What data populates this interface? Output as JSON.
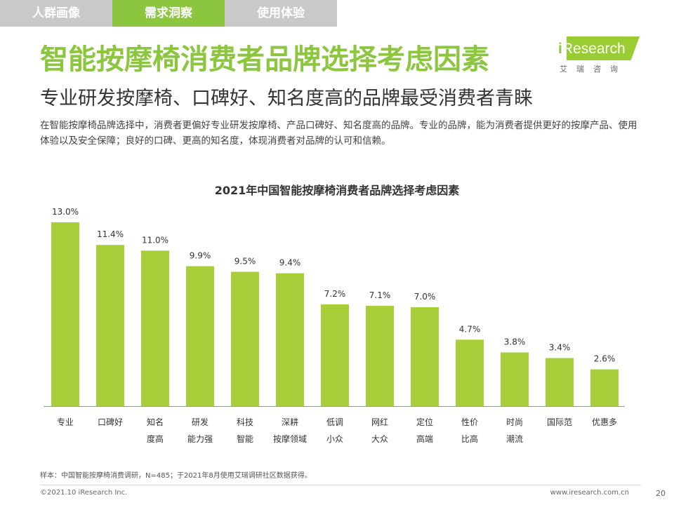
{
  "tabs": [
    {
      "label": "人群画像",
      "active": false
    },
    {
      "label": "需求洞察",
      "active": true
    },
    {
      "label": "使用体验",
      "active": false
    }
  ],
  "logo": {
    "main": "Research",
    "i_letter": "i",
    "sub": "艾瑞咨询"
  },
  "title": "智能按摩椅消费者品牌选择考虑因素",
  "subtitle": "专业研发按摩椅、口碑好、知名度高的品牌最受消费者青睐",
  "description": "在智能按摩椅品牌选择中，消费者更偏好专业研发按摩椅、产品口碑好、知名度高的品牌。专业的品牌，能为消费者提供更好的按摩产品、使用体验以及安全保障；良好的口碑、更高的知名度，体现消费者对品牌的认可和信赖。",
  "chart_data": {
    "type": "bar",
    "title": "2021年中国智能按摩椅消费者品牌选择考虑因素",
    "categories": [
      "专业",
      "口碑好",
      "知名度高",
      "研发能力强",
      "科技智能",
      "深耕按摩领域",
      "低调小众",
      "网红大众",
      "定位高端",
      "性价比高",
      "时尚潮流",
      "国际范",
      "优惠多"
    ],
    "category_lines": [
      [
        "专业"
      ],
      [
        "口碑好"
      ],
      [
        "知名",
        "度高"
      ],
      [
        "研发",
        "能力强"
      ],
      [
        "科技",
        "智能"
      ],
      [
        "深耕",
        "按摩领域"
      ],
      [
        "低调",
        "小众"
      ],
      [
        "网红",
        "大众"
      ],
      [
        "定位",
        "高端"
      ],
      [
        "性价",
        "比高"
      ],
      [
        "时尚",
        "潮流"
      ],
      [
        "国际范"
      ],
      [
        "优惠多"
      ]
    ],
    "values": [
      13.0,
      11.4,
      11.0,
      9.9,
      9.5,
      9.4,
      7.2,
      7.1,
      7.0,
      4.7,
      3.8,
      3.4,
      2.6
    ],
    "value_labels": [
      "13.0%",
      "11.4%",
      "11.0%",
      "9.9%",
      "9.5%",
      "9.4%",
      "7.2%",
      "7.1%",
      "7.0%",
      "4.7%",
      "3.8%",
      "3.4%",
      "2.6%"
    ],
    "ylim": [
      0,
      13.0
    ],
    "bar_color": "#a8cf3a",
    "grid": false
  },
  "footnote": "样本：中国智能按摩椅消费调研，N=485；于2021年8月使用艾瑞调研社区数据获得。",
  "copyright": "©2021.10 iResearch Inc.",
  "website": "www.iresearch.com.cn",
  "page_number": "20"
}
